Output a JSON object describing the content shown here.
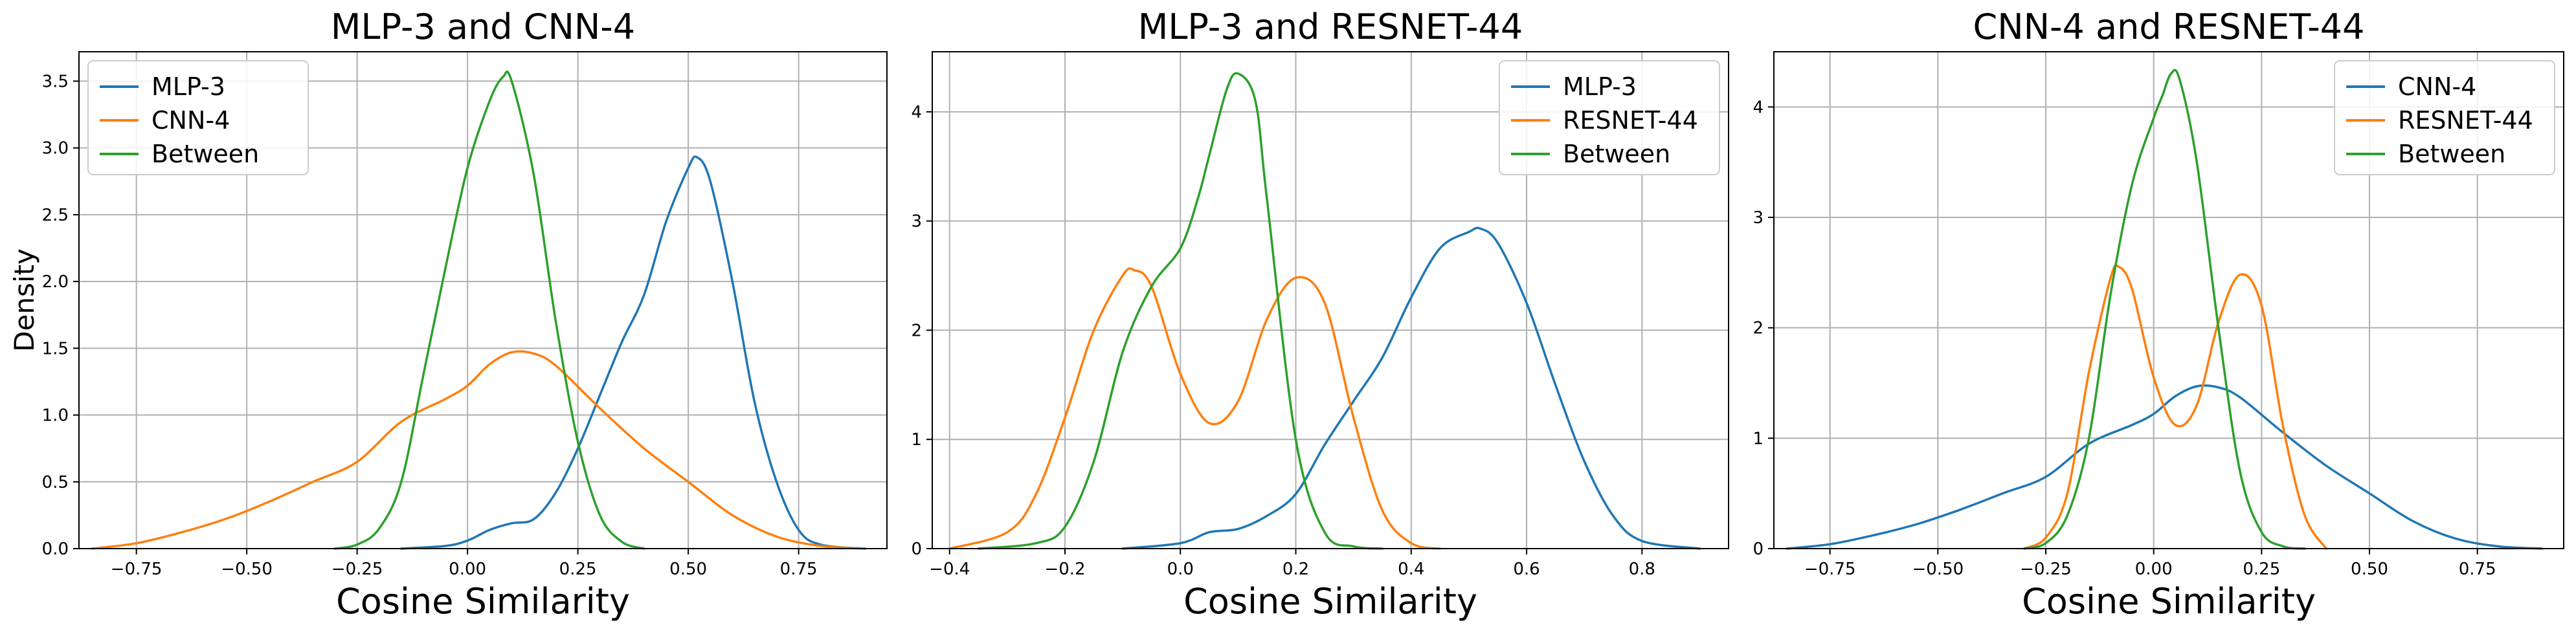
{
  "chart_data": [
    {
      "type": "line",
      "title": "MLP-3 and CNN-4",
      "xlabel": "Cosine Similarity",
      "ylabel": "Density",
      "xlim": [
        -0.88,
        0.95
      ],
      "ylim": [
        0,
        3.72
      ],
      "xticks": [
        -0.75,
        -0.5,
        -0.25,
        0.0,
        0.25,
        0.5,
        0.75
      ],
      "xtick_labels": [
        "−0.75",
        "−0.50",
        "−0.25",
        "0.00",
        "0.25",
        "0.50",
        "0.75"
      ],
      "yticks": [
        0,
        0.5,
        1.0,
        1.5,
        2.0,
        2.5,
        3.0,
        3.5
      ],
      "ytick_labels": [
        "0.0",
        "0.5",
        "1.0",
        "1.5",
        "2.0",
        "2.5",
        "3.0",
        "3.5"
      ],
      "grid": true,
      "legend": "upper-left",
      "series": [
        {
          "name": "MLP-3",
          "color": "#1f77b4",
          "x": [
            -0.15,
            -0.05,
            0.0,
            0.05,
            0.1,
            0.15,
            0.2,
            0.25,
            0.3,
            0.35,
            0.4,
            0.45,
            0.5,
            0.52,
            0.55,
            0.6,
            0.65,
            0.7,
            0.75,
            0.8,
            0.9
          ],
          "y": [
            0,
            0.02,
            0.06,
            0.14,
            0.19,
            0.22,
            0.42,
            0.75,
            1.15,
            1.55,
            1.9,
            2.45,
            2.85,
            2.93,
            2.75,
            2.0,
            1.1,
            0.5,
            0.14,
            0.03,
            0
          ]
        },
        {
          "name": "CNN-4",
          "color": "#ff7f0e",
          "x": [
            -0.85,
            -0.75,
            -0.65,
            -0.55,
            -0.45,
            -0.35,
            -0.25,
            -0.15,
            -0.05,
            0.0,
            0.05,
            0.1,
            0.15,
            0.2,
            0.3,
            0.4,
            0.5,
            0.6,
            0.7,
            0.8,
            0.9
          ],
          "y": [
            0,
            0.04,
            0.12,
            0.22,
            0.35,
            0.5,
            0.65,
            0.95,
            1.12,
            1.22,
            1.38,
            1.47,
            1.46,
            1.37,
            1.05,
            0.75,
            0.5,
            0.25,
            0.09,
            0.02,
            0
          ]
        },
        {
          "name": "Between",
          "color": "#2ca02c",
          "x": [
            -0.3,
            -0.25,
            -0.2,
            -0.15,
            -0.1,
            -0.05,
            0.0,
            0.05,
            0.08,
            0.1,
            0.15,
            0.2,
            0.25,
            0.3,
            0.35,
            0.4
          ],
          "y": [
            0,
            0.03,
            0.15,
            0.5,
            1.3,
            2.1,
            2.85,
            3.35,
            3.53,
            3.5,
            2.8,
            1.7,
            0.8,
            0.25,
            0.05,
            0
          ]
        }
      ]
    },
    {
      "type": "line",
      "title": "MLP-3 and RESNET-44",
      "xlabel": "Cosine Similarity",
      "ylabel": "",
      "xlim": [
        -0.43,
        0.95
      ],
      "ylim": [
        0,
        4.55
      ],
      "xticks": [
        -0.4,
        -0.2,
        0.0,
        0.2,
        0.4,
        0.6,
        0.8
      ],
      "xtick_labels": [
        "−0.4",
        "−0.2",
        "0.0",
        "0.2",
        "0.4",
        "0.6",
        "0.8"
      ],
      "yticks": [
        0,
        1,
        2,
        3,
        4
      ],
      "ytick_labels": [
        "0",
        "1",
        "2",
        "3",
        "4"
      ],
      "grid": true,
      "legend": "upper-right",
      "series": [
        {
          "name": "MLP-3",
          "color": "#1f77b4",
          "x": [
            -0.1,
            0.0,
            0.05,
            0.1,
            0.15,
            0.2,
            0.25,
            0.3,
            0.35,
            0.4,
            0.45,
            0.5,
            0.52,
            0.55,
            0.6,
            0.65,
            0.7,
            0.75,
            0.8,
            0.9
          ],
          "y": [
            0,
            0.05,
            0.15,
            0.18,
            0.3,
            0.5,
            0.95,
            1.35,
            1.75,
            2.3,
            2.75,
            2.9,
            2.93,
            2.8,
            2.25,
            1.5,
            0.8,
            0.3,
            0.07,
            0
          ]
        },
        {
          "name": "RESNET-44",
          "color": "#ff7f0e",
          "x": [
            -0.4,
            -0.3,
            -0.25,
            -0.2,
            -0.15,
            -0.1,
            -0.08,
            -0.05,
            0.0,
            0.05,
            0.1,
            0.15,
            0.2,
            0.25,
            0.3,
            0.35,
            0.4,
            0.45
          ],
          "y": [
            0,
            0.15,
            0.5,
            1.2,
            2.0,
            2.5,
            2.55,
            2.4,
            1.6,
            1.15,
            1.35,
            2.1,
            2.48,
            2.25,
            1.2,
            0.35,
            0.05,
            0
          ]
        },
        {
          "name": "Between",
          "color": "#2ca02c",
          "x": [
            -0.35,
            -0.25,
            -0.2,
            -0.15,
            -0.1,
            -0.05,
            0.0,
            0.03,
            0.05,
            0.08,
            0.1,
            0.13,
            0.15,
            0.2,
            0.25,
            0.3,
            0.35
          ],
          "y": [
            0,
            0.05,
            0.2,
            0.8,
            1.8,
            2.4,
            2.75,
            3.2,
            3.6,
            4.2,
            4.35,
            4.1,
            3.2,
            1.0,
            0.15,
            0.02,
            0
          ]
        }
      ]
    },
    {
      "type": "line",
      "title": "CNN-4 and RESNET-44",
      "xlabel": "Cosine Similarity",
      "ylabel": "",
      "xlim": [
        -0.88,
        0.95
      ],
      "ylim": [
        0,
        4.5
      ],
      "xticks": [
        -0.75,
        -0.5,
        -0.25,
        0.0,
        0.25,
        0.5,
        0.75
      ],
      "xtick_labels": [
        "−0.75",
        "−0.50",
        "−0.25",
        "0.00",
        "0.25",
        "0.50",
        "0.75"
      ],
      "yticks": [
        0,
        1,
        2,
        3,
        4
      ],
      "ytick_labels": [
        "0",
        "1",
        "2",
        "3",
        "4"
      ],
      "grid": true,
      "legend": "upper-right",
      "series": [
        {
          "name": "CNN-4",
          "color": "#1f77b4",
          "x": [
            -0.85,
            -0.75,
            -0.65,
            -0.55,
            -0.45,
            -0.35,
            -0.25,
            -0.15,
            -0.05,
            0.0,
            0.05,
            0.1,
            0.15,
            0.2,
            0.3,
            0.4,
            0.5,
            0.6,
            0.7,
            0.8,
            0.9
          ],
          "y": [
            0,
            0.04,
            0.12,
            0.22,
            0.35,
            0.5,
            0.65,
            0.95,
            1.12,
            1.22,
            1.38,
            1.47,
            1.46,
            1.37,
            1.05,
            0.75,
            0.5,
            0.25,
            0.09,
            0.02,
            0
          ]
        },
        {
          "name": "RESNET-44",
          "color": "#ff7f0e",
          "x": [
            -0.3,
            -0.25,
            -0.2,
            -0.15,
            -0.1,
            -0.08,
            -0.05,
            0.0,
            0.05,
            0.1,
            0.15,
            0.2,
            0.25,
            0.3,
            0.35,
            0.4
          ],
          "y": [
            0,
            0.1,
            0.5,
            1.6,
            2.45,
            2.55,
            2.35,
            1.55,
            1.12,
            1.3,
            2.05,
            2.48,
            2.2,
            1.1,
            0.3,
            0
          ]
        },
        {
          "name": "Between",
          "color": "#2ca02c",
          "x": [
            -0.3,
            -0.25,
            -0.2,
            -0.15,
            -0.1,
            -0.05,
            0.0,
            0.02,
            0.04,
            0.06,
            0.1,
            0.15,
            0.2,
            0.25,
            0.3,
            0.35
          ],
          "y": [
            0,
            0.05,
            0.3,
            1.0,
            2.3,
            3.3,
            3.9,
            4.1,
            4.3,
            4.25,
            3.5,
            2.0,
            0.7,
            0.15,
            0.02,
            0
          ]
        }
      ]
    }
  ]
}
